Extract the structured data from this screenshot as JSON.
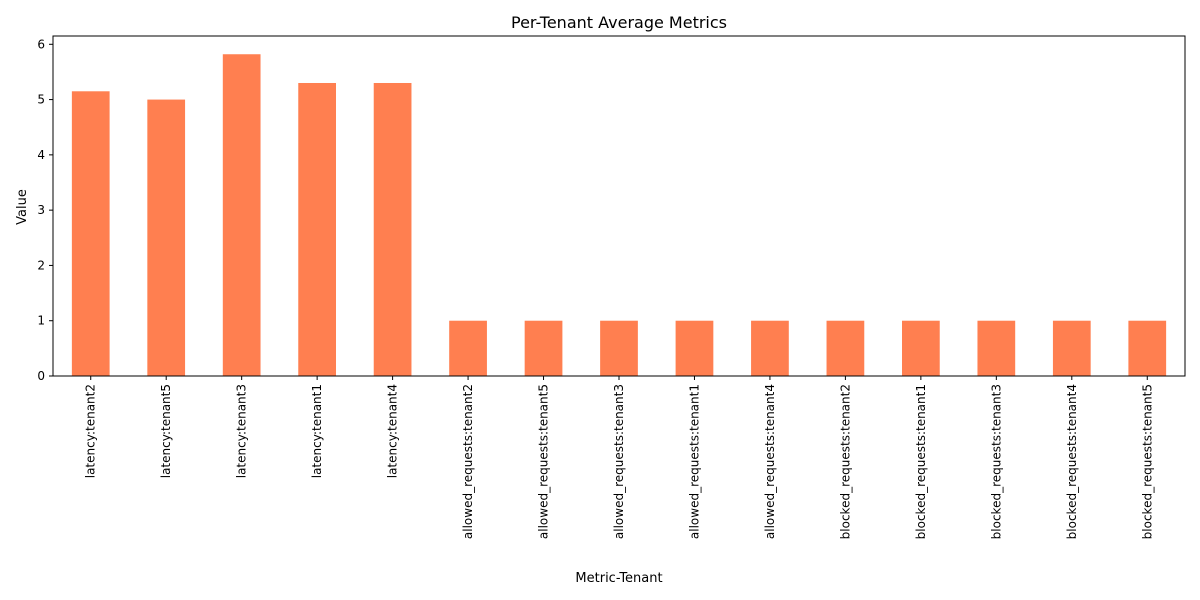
{
  "chart_data": {
    "type": "bar",
    "title": "Per-Tenant Average Metrics",
    "xlabel": "Metric-Tenant",
    "ylabel": "Value",
    "ylim": [
      0,
      6.15
    ],
    "yticks": [
      0,
      1,
      2,
      3,
      4,
      5,
      6
    ],
    "grid": false,
    "legend": "none",
    "bar_color": "#ff7f50",
    "categories": [
      "latency:tenant2",
      "latency:tenant5",
      "latency:tenant3",
      "latency:tenant1",
      "latency:tenant4",
      "allowed_requests:tenant2",
      "allowed_requests:tenant5",
      "allowed_requests:tenant3",
      "allowed_requests:tenant1",
      "allowed_requests:tenant4",
      "blocked_requests:tenant2",
      "blocked_requests:tenant1",
      "blocked_requests:tenant3",
      "blocked_requests:tenant4",
      "blocked_requests:tenant5"
    ],
    "values": [
      5.15,
      5.0,
      5.82,
      5.3,
      5.3,
      1,
      1,
      1,
      1,
      1,
      1,
      1,
      1,
      1,
      1
    ]
  }
}
